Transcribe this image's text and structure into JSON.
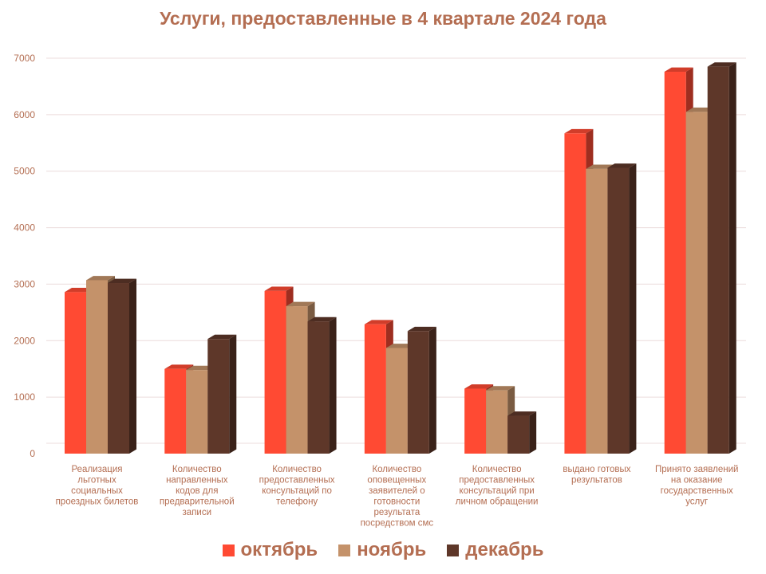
{
  "title": "Услуги, предоставленные в 4 квартале 2024 года",
  "chart_data": {
    "type": "bar",
    "title": "Услуги, предоставленные в 4 квартале 2024 года",
    "xlabel": "",
    "ylabel": "",
    "ylim": [
      0,
      7000
    ],
    "yticks": [
      0,
      1000,
      2000,
      3000,
      4000,
      5000,
      6000,
      7000
    ],
    "grid": true,
    "legend_position": "bottom",
    "categories": [
      "Реализация льготных социальных проездных билетов",
      "Количество направленных кодов для предварительной записи",
      "Количество предоставленных консультаций  по телефону",
      "Количество оповещенных заявителей о готовности результата посредством смс",
      "Количество предоставленных консультаций  при личном обращении",
      "выдано готовых результатов",
      "Принято заявлений на оказание государственных услуг"
    ],
    "category_lines": [
      [
        "Реализация",
        "льготных",
        "социальных",
        "проездных билетов"
      ],
      [
        "Количество",
        "направленных",
        "кодов для",
        "предварительной",
        "записи"
      ],
      [
        "Количество",
        "предоставленных",
        "консультаций   по",
        "телефону"
      ],
      [
        "Количество",
        "оповещенных",
        "заявителей о",
        "готовности",
        "результата",
        "посредством смс"
      ],
      [
        "Количество",
        "предоставленных",
        "консультаций  при",
        "личном обращении"
      ],
      [
        "выдано готовых",
        "результатов"
      ],
      [
        "Принято заявлений",
        "на оказание",
        "государственных",
        "услуг"
      ]
    ],
    "series": [
      {
        "name": "октябрь",
        "color": "#ff4a33",
        "values": [
          2860,
          1500,
          2880,
          2290,
          1150,
          5670,
          6760
        ]
      },
      {
        "name": "ноябрь",
        "color": "#c4926a",
        "values": [
          3070,
          1480,
          2610,
          1870,
          1120,
          5040,
          6050
        ]
      },
      {
        "name": "декабрь",
        "color": "#5e3729",
        "values": [
          3020,
          2030,
          2340,
          2170,
          670,
          5060,
          6850
        ]
      }
    ]
  }
}
